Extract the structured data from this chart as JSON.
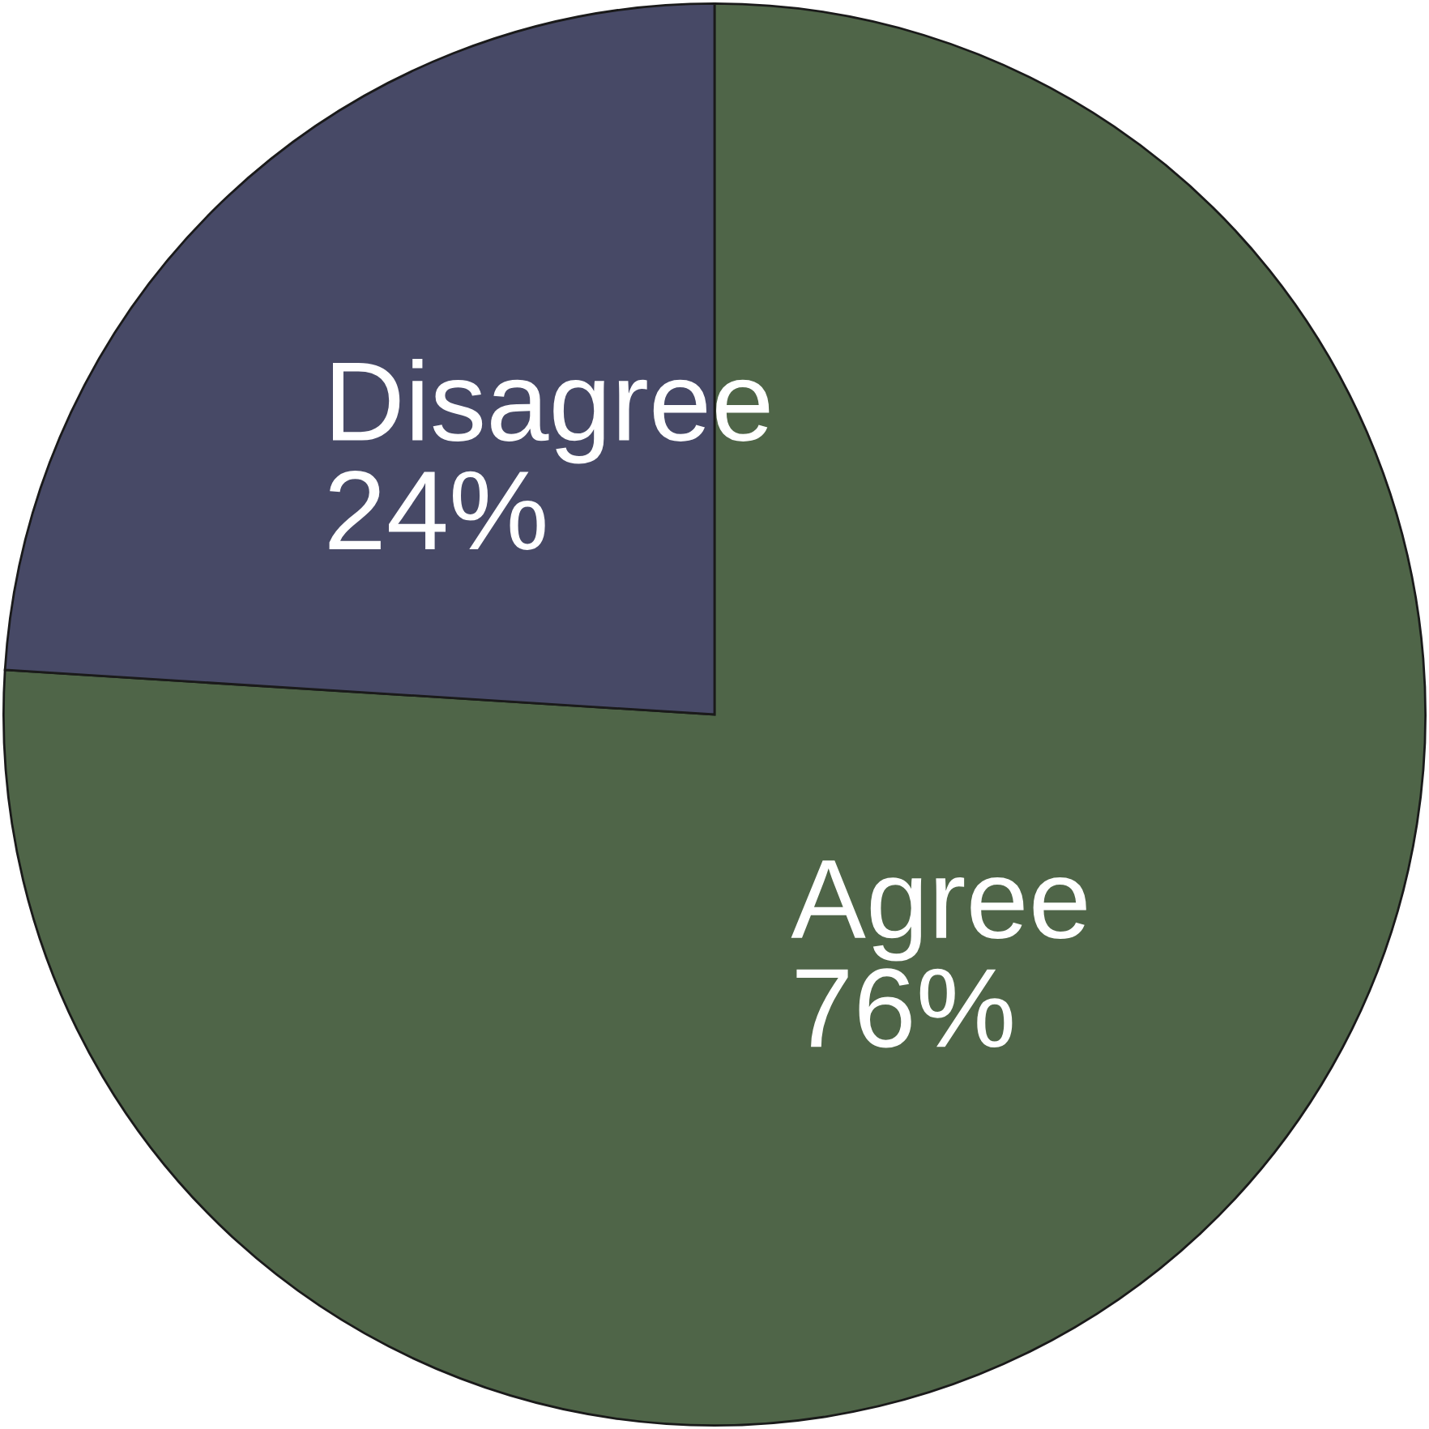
{
  "chart_data": {
    "type": "pie",
    "categories": [
      "Agree",
      "Disagree"
    ],
    "values": [
      76,
      24
    ],
    "value_labels": [
      "76%",
      "24%"
    ],
    "colors": [
      "#4f6548",
      "#474966"
    ],
    "legend": false
  }
}
